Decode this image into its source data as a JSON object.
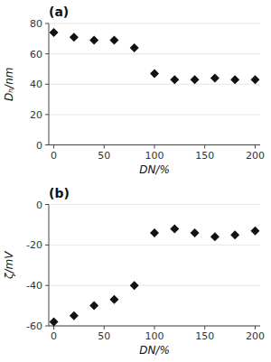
{
  "chart_data": [
    {
      "type": "scatter",
      "x": [
        0,
        20,
        40,
        60,
        80,
        100,
        120,
        140,
        160,
        180,
        200
      ],
      "values": [
        74,
        71,
        69,
        69,
        64,
        47,
        43,
        43,
        44,
        43,
        43
      ],
      "y_label": "Dₕ/nm",
      "x_label": "DN/%",
      "annotations": [
        "(a)"
      ],
      "xlim": [
        -5,
        205
      ],
      "xticks": [
        0,
        50,
        100,
        150,
        200
      ],
      "ylim": [
        0,
        80
      ],
      "yticks": [
        0,
        20,
        40,
        60,
        80
      ],
      "marker": "diamond",
      "color": "#111111"
    },
    {
      "type": "scatter",
      "x": [
        0,
        20,
        40,
        60,
        80,
        100,
        120,
        140,
        160,
        180,
        200
      ],
      "values": [
        -58,
        -55,
        -50,
        -47,
        -40,
        -14,
        -12,
        -14,
        -16,
        -15,
        -13
      ],
      "y_label": "ζ/mV",
      "x_label": "DN/%",
      "annotations": [
        "(b)"
      ],
      "xlim": [
        -5,
        205
      ],
      "xticks": [
        0,
        50,
        100,
        150,
        200
      ],
      "ylim": [
        -60,
        0
      ],
      "yticks": [
        -60,
        -40,
        -20,
        0
      ],
      "marker": "diamond",
      "color": "#111111"
    }
  ]
}
